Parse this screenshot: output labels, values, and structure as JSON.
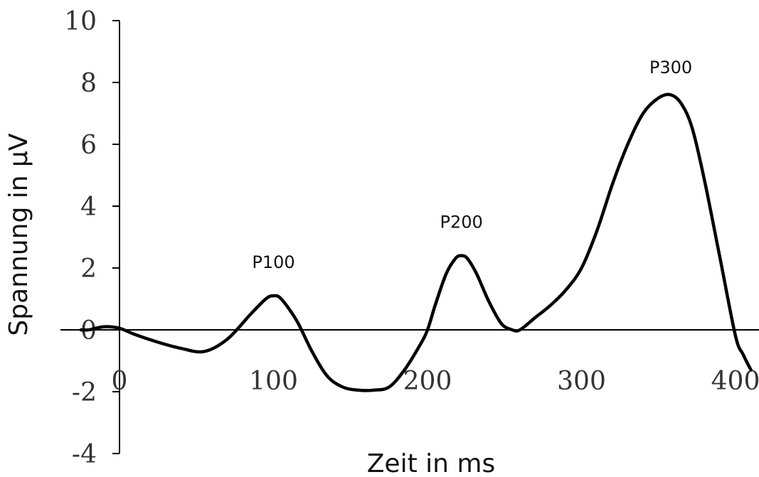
{
  "chart_data": {
    "type": "line",
    "title": "",
    "xlabel": "Zeit in ms",
    "ylabel": "Spannung in µV",
    "xlim": [
      -25,
      410
    ],
    "ylim": [
      -4,
      10
    ],
    "x_ticks": [
      0,
      100,
      200,
      300,
      400
    ],
    "y_ticks": [
      -4,
      -2,
      0,
      2,
      4,
      6,
      8,
      10
    ],
    "grid": false,
    "line_color": "#000000",
    "series": [
      {
        "x": [
          -25,
          -20,
          -10,
          0,
          10,
          25,
          40,
          55,
          70,
          85,
          95,
          100,
          105,
          115,
          125,
          135,
          145,
          155,
          165,
          175,
          185,
          195,
          200,
          205,
          212,
          218,
          222,
          226,
          232,
          240,
          248,
          255,
          260,
          270,
          280,
          290,
          300,
          310,
          320,
          330,
          340,
          350,
          358,
          365,
          372,
          380,
          390,
          400,
          405,
          410
        ],
        "y": [
          0.0,
          0.0,
          0.1,
          0.05,
          -0.15,
          -0.4,
          -0.6,
          -0.7,
          -0.3,
          0.5,
          1.0,
          1.1,
          1.0,
          0.3,
          -0.7,
          -1.5,
          -1.85,
          -1.95,
          -1.95,
          -1.85,
          -1.3,
          -0.5,
          0.0,
          0.8,
          1.8,
          2.3,
          2.4,
          2.3,
          1.8,
          0.9,
          0.2,
          0.0,
          0.0,
          0.4,
          0.8,
          1.3,
          2.0,
          3.2,
          4.7,
          6.0,
          7.0,
          7.5,
          7.6,
          7.3,
          6.5,
          4.8,
          2.3,
          -0.2,
          -0.8,
          -1.3
        ]
      }
    ],
    "annotations": [
      {
        "text": "P100",
        "x": 100,
        "y": 2.0
      },
      {
        "text": "P200",
        "x": 222,
        "y": 3.3
      },
      {
        "text": "P300",
        "x": 358,
        "y": 8.3
      }
    ]
  }
}
